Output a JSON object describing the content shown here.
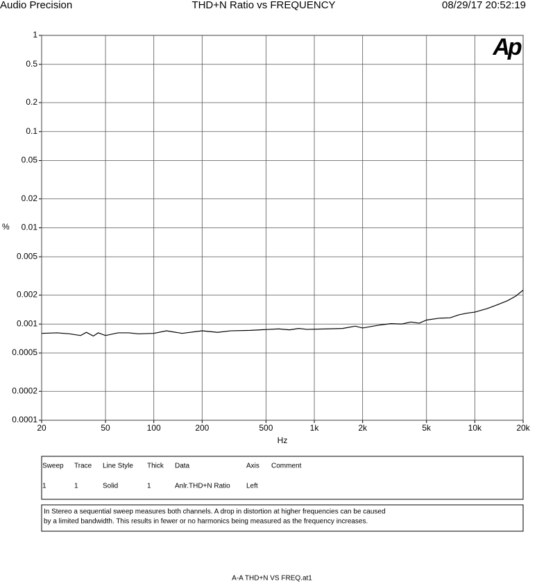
{
  "header": {
    "left": "Audio Precision",
    "date": "08/29/17 20:52:19"
  },
  "chart_data": {
    "type": "line",
    "title": "THD+N Ratio vs FREQUENCY",
    "xlabel": "Hz",
    "ylabel": "%",
    "logo": "Ap",
    "xscale": "log",
    "yscale": "log",
    "grid": true,
    "color": "#000000",
    "xlim": [
      20,
      20000
    ],
    "ylim": [
      0.0001,
      1
    ],
    "xticks": [
      20,
      50,
      100,
      200,
      500,
      {
        "value": 1000,
        "label": "1k"
      },
      {
        "value": 2000,
        "label": "2k"
      },
      {
        "value": 5000,
        "label": "5k"
      },
      {
        "value": 10000,
        "label": "10k"
      },
      {
        "value": 20000,
        "label": "20k"
      }
    ],
    "yticks": [
      1,
      0.5,
      0.2,
      0.1,
      0.05,
      0.02,
      0.01,
      0.005,
      0.002,
      0.001,
      0.0005,
      0.0002,
      0.0001
    ],
    "x": [
      20,
      25,
      30,
      35,
      38,
      42,
      45,
      50,
      60,
      70,
      80,
      100,
      120,
      150,
      200,
      250,
      300,
      400,
      600,
      700,
      800,
      900,
      1200,
      1500,
      1800,
      2000,
      2500,
      3000,
      3500,
      4000,
      4500,
      5000,
      6000,
      7000,
      8000,
      9000,
      10000,
      12000,
      14000,
      16000,
      18000,
      20000
    ],
    "values": [
      0.0008,
      0.00081,
      0.00079,
      0.00076,
      0.00082,
      0.00075,
      0.00081,
      0.00076,
      0.00081,
      0.00081,
      0.00079,
      0.0008,
      0.00085,
      0.0008,
      0.00085,
      0.00082,
      0.00085,
      0.00086,
      0.00089,
      0.00087,
      0.0009,
      0.00088,
      0.00089,
      0.0009,
      0.00095,
      0.00091,
      0.00097,
      0.00101,
      0.001,
      0.00105,
      0.00102,
      0.0011,
      0.00115,
      0.00116,
      0.00125,
      0.0013,
      0.00133,
      0.00145,
      0.0016,
      0.00175,
      0.00195,
      0.00225
    ]
  },
  "legend_table": {
    "columns": [
      "Sweep",
      "Trace",
      "Line Style",
      "Thick",
      "Data",
      "Axis",
      "Comment"
    ],
    "rows": [
      [
        "1",
        "1",
        "Solid",
        "1",
        "Anlr.THD+N Ratio",
        "Left"
      ]
    ]
  },
  "note": [
    "In Stereo a sequential sweep measures both channels.  A drop in distortion at higher frequencies can be caused",
    "by a limited bandwidth.  This results in fewer or no harmonics being measured as the frequency increases."
  ],
  "footer": "A-A THD+N VS FREQ.at1"
}
